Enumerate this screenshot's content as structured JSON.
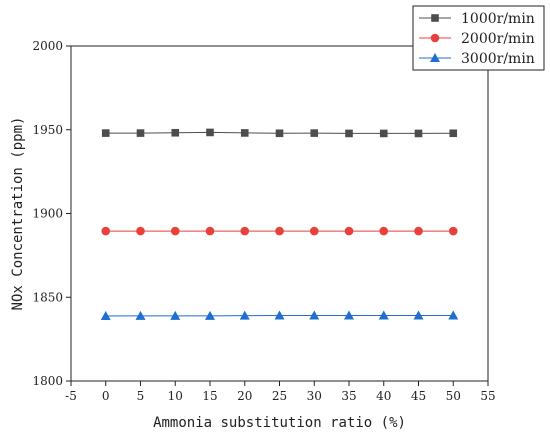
{
  "chart_data": {
    "type": "line",
    "title": "",
    "xlabel": "Ammonia substitution ratio (%)",
    "ylabel": "NOx Concentration (ppm)",
    "xlim": [
      -5,
      55
    ],
    "ylim": [
      1800,
      2000
    ],
    "x_ticks": [
      -5,
      0,
      5,
      10,
      15,
      20,
      25,
      30,
      35,
      40,
      45,
      50,
      55
    ],
    "y_ticks": [
      1800,
      1850,
      1900,
      1950,
      2000
    ],
    "grid": false,
    "legend_position": "top-right",
    "x": [
      0,
      5,
      10,
      15,
      20,
      25,
      30,
      35,
      40,
      45,
      50
    ],
    "series": [
      {
        "name": "1000r/min",
        "marker": "square",
        "color": "#4d4d4d",
        "values": [
          1948,
          1948,
          1948.2,
          1948.4,
          1948.1,
          1947.9,
          1948,
          1947.8,
          1947.8,
          1947.8,
          1947.9
        ]
      },
      {
        "name": "2000r/min",
        "marker": "circle",
        "color": "#e8413c",
        "values": [
          1889.5,
          1889.5,
          1889.5,
          1889.5,
          1889.5,
          1889.5,
          1889.5,
          1889.5,
          1889.5,
          1889.5,
          1889.5
        ]
      },
      {
        "name": "3000r/min",
        "marker": "triangle",
        "color": "#1f6fd1",
        "values": [
          1838.8,
          1838.9,
          1838.9,
          1838.9,
          1839,
          1839.1,
          1839.1,
          1839.1,
          1839.1,
          1839.1,
          1839.1
        ]
      }
    ]
  }
}
